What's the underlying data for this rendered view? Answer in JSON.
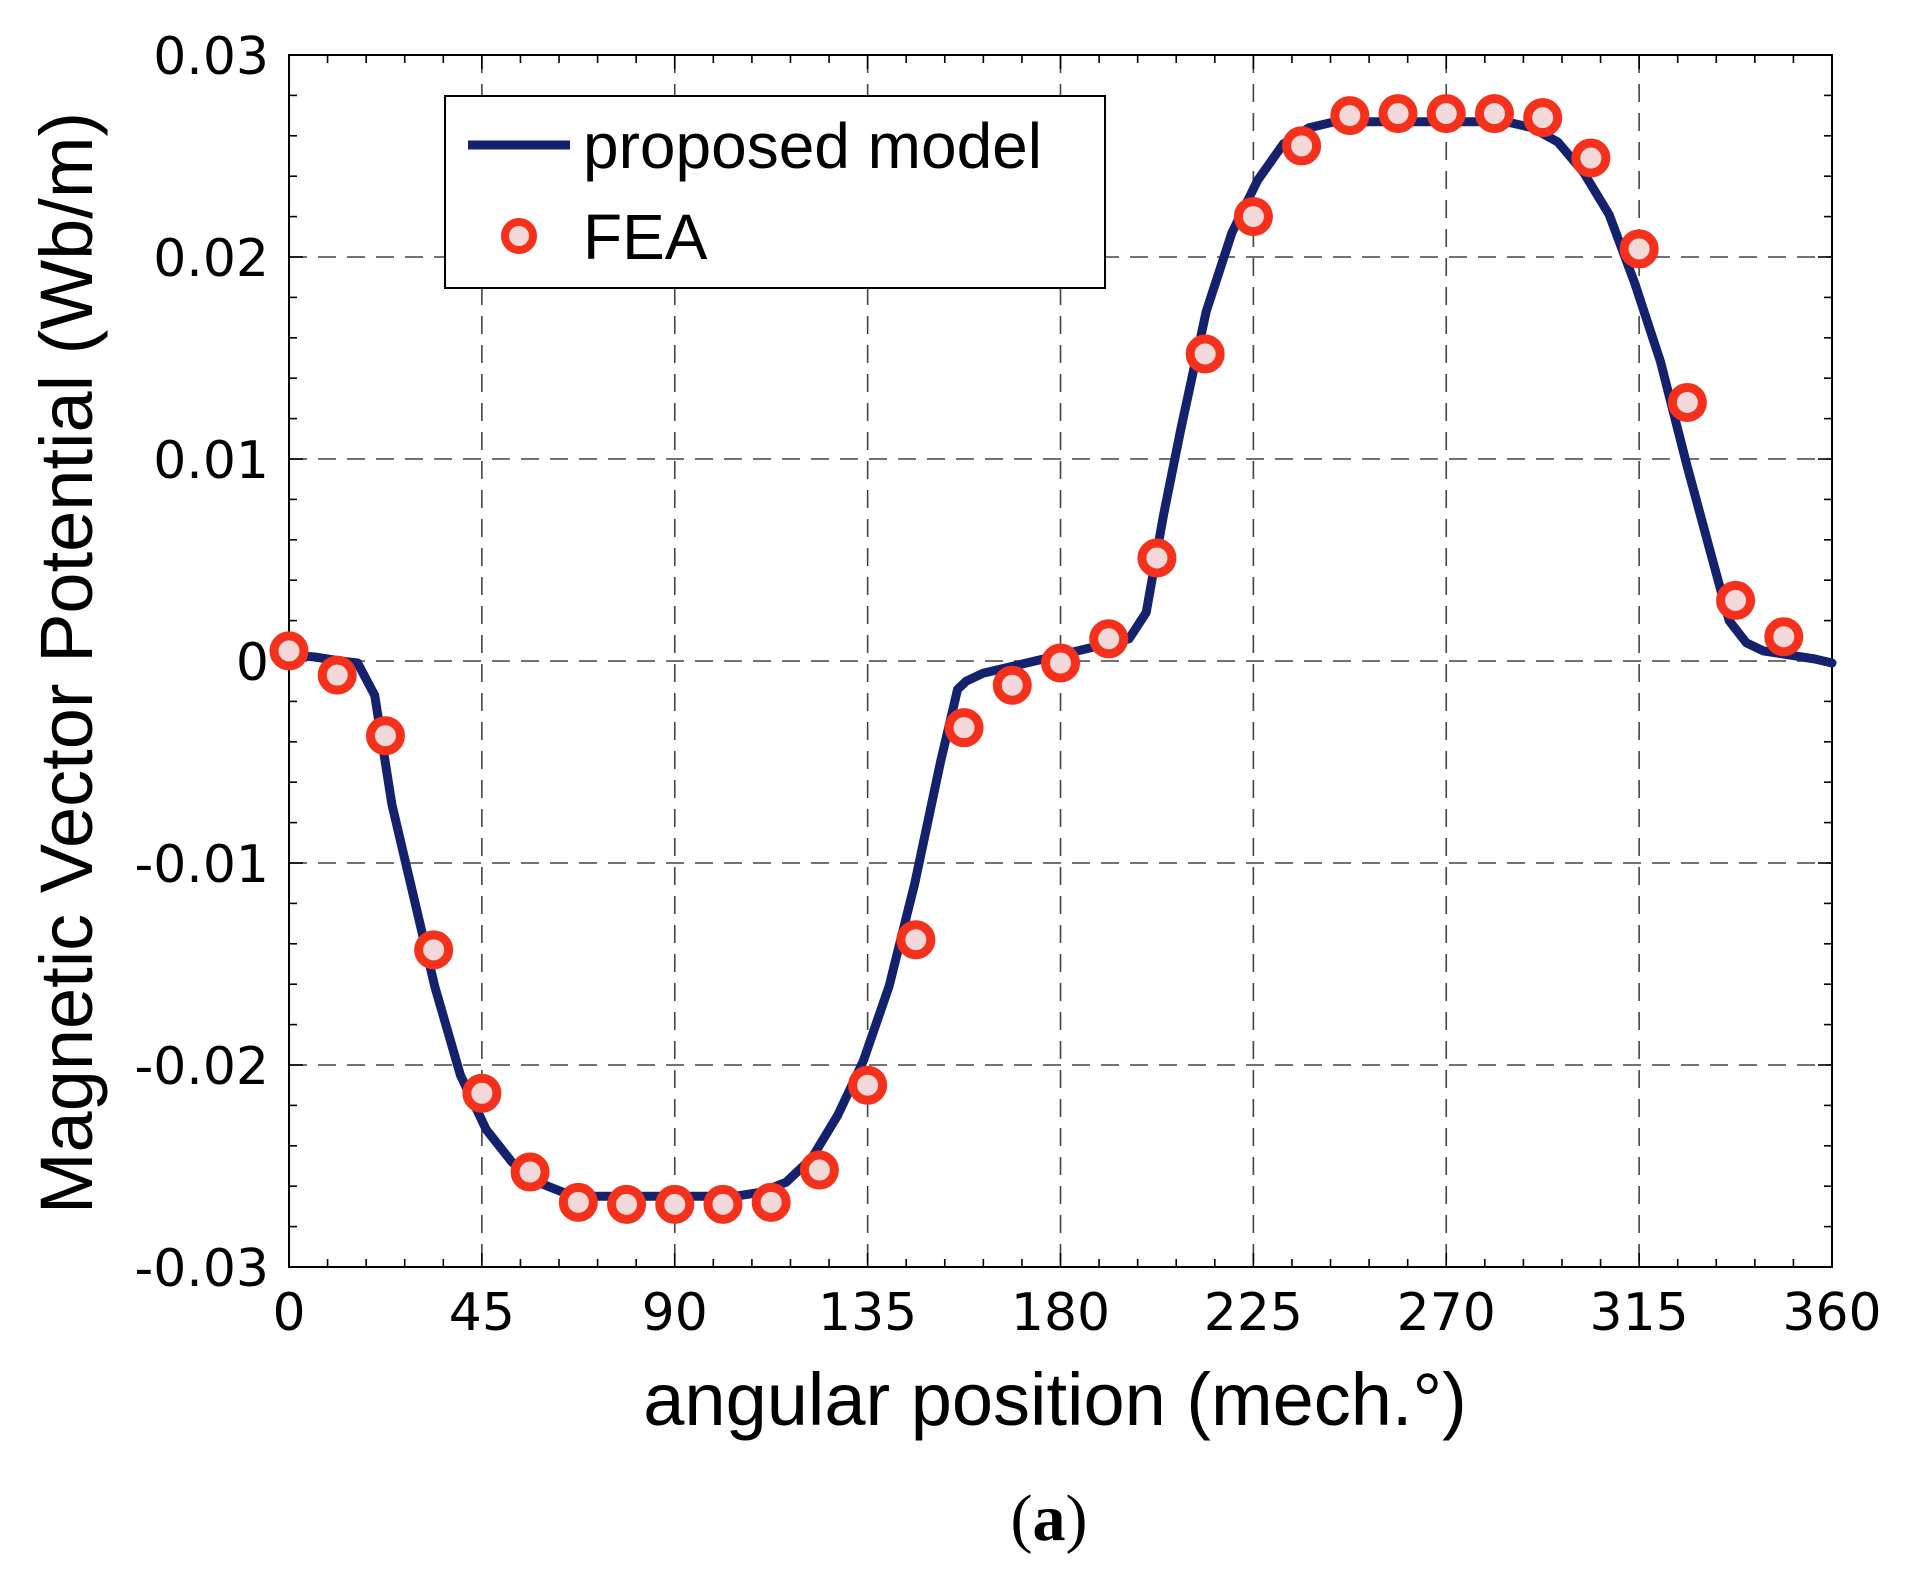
{
  "chart_data": {
    "type": "line",
    "xlabel": "angular position (mech.°)",
    "ylabel": "Magnetic Vector Potential (Wb/m)",
    "xlim": [
      0,
      360
    ],
    "ylim": [
      -0.03,
      0.03
    ],
    "xticks": [
      0,
      45,
      90,
      135,
      180,
      225,
      270,
      315,
      360
    ],
    "xtick_labels": [
      "0",
      "45",
      "90",
      "135",
      "180",
      "225",
      "270",
      "315",
      "360"
    ],
    "yticks": [
      -0.03,
      -0.02,
      -0.01,
      0,
      0.01,
      0.02,
      0.03
    ],
    "ytick_labels": [
      "-0.03",
      "-0.02",
      "-0.01",
      "0",
      "0.01",
      "0.02",
      "0.03"
    ],
    "grid": true,
    "legend_position": "top-left",
    "caption_open": "(",
    "caption_letter": "a",
    "caption_close": ")",
    "colors": {
      "line": "#14226e",
      "marker_edge": "#f5301b",
      "marker_fill": "#f2d8d8",
      "grid": "#444444"
    },
    "series": [
      {
        "name": "proposed model",
        "style": "line",
        "x": [
          0,
          6,
          12,
          16,
          20,
          24,
          28,
          34,
          40,
          46,
          52,
          58,
          64,
          70,
          76,
          90,
          104,
          110,
          116,
          122,
          128,
          134,
          140,
          146,
          152,
          156,
          158,
          162,
          168,
          176,
          184,
          190,
          196,
          200,
          204,
          208,
          214,
          220,
          226,
          232,
          238,
          244,
          250,
          256,
          270,
          284,
          290,
          296,
          302,
          308,
          314,
          320,
          326,
          332,
          336,
          340,
          344,
          350,
          356,
          360
        ],
        "y": [
          0.0003,
          0.0002,
          0.0,
          -0.0001,
          -0.0017,
          -0.0071,
          -0.0107,
          -0.0161,
          -0.0205,
          -0.0232,
          -0.0248,
          -0.0258,
          -0.0263,
          -0.0265,
          -0.0265,
          -0.0265,
          -0.0265,
          -0.0263,
          -0.0258,
          -0.0246,
          -0.0225,
          -0.0198,
          -0.0161,
          -0.011,
          -0.005,
          -0.0014,
          -0.001,
          -0.0006,
          -0.0003,
          0.0001,
          0.0005,
          0.0008,
          0.0011,
          0.0024,
          0.0072,
          0.0114,
          0.0173,
          0.0212,
          0.0238,
          0.0256,
          0.0264,
          0.0267,
          0.0267,
          0.0267,
          0.0267,
          0.0267,
          0.0264,
          0.0257,
          0.0242,
          0.0221,
          0.0187,
          0.0148,
          0.0098,
          0.0051,
          0.002,
          0.0009,
          0.0005,
          0.0003,
          0.0001,
          -0.0001
        ]
      },
      {
        "name": "FEA",
        "style": "marker",
        "x": [
          0,
          11.25,
          22.5,
          33.75,
          45,
          56.25,
          67.5,
          78.75,
          90,
          101.25,
          112.5,
          123.75,
          135,
          146.25,
          157.5,
          168.75,
          180,
          191.25,
          202.5,
          213.75,
          225,
          236.25,
          247.5,
          258.75,
          270,
          281.25,
          292.5,
          303.75,
          315,
          326.25,
          337.5,
          348.75
        ],
        "y": [
          0.0005,
          -0.0007,
          -0.0037,
          -0.0143,
          -0.0214,
          -0.0253,
          -0.0268,
          -0.0269,
          -0.0269,
          -0.0269,
          -0.0268,
          -0.0252,
          -0.021,
          -0.0138,
          -0.0033,
          -0.0012,
          -0.0001,
          0.0011,
          0.0051,
          0.0152,
          0.022,
          0.0255,
          0.027,
          0.0271,
          0.0271,
          0.0271,
          0.0269,
          0.0249,
          0.0204,
          0.0128,
          0.003,
          0.0012
        ]
      }
    ]
  }
}
